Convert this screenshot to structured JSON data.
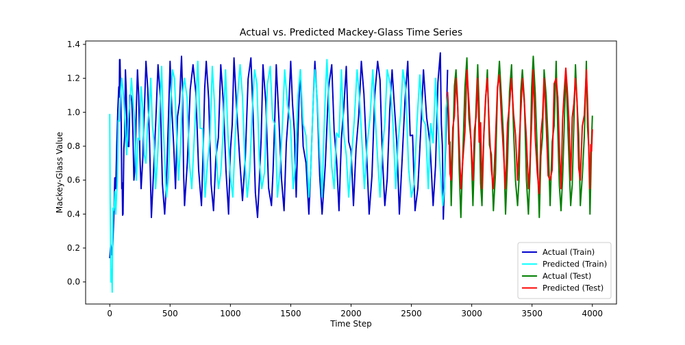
{
  "chart_data": {
    "type": "line",
    "title": "Actual vs. Predicted Mackey-Glass Time Series",
    "xlabel": "Time Step",
    "ylabel": "Mackey-Glass Value",
    "xlim": [
      -200,
      4200
    ],
    "ylim": [
      -0.13,
      1.42
    ],
    "x_ticks": [
      0,
      500,
      1000,
      1500,
      2000,
      2500,
      3000,
      3500,
      4000
    ],
    "y_ticks": [
      0.0,
      0.2,
      0.4,
      0.6,
      0.8,
      1.0,
      1.2,
      1.4
    ],
    "x_tick_labels": [
      "0",
      "500",
      "1000",
      "1500",
      "2000",
      "2500",
      "3000",
      "3500",
      "4000"
    ],
    "y_tick_labels": [
      "0.0",
      "0.2",
      "0.4",
      "0.6",
      "0.8",
      "1.0",
      "1.2",
      "1.4"
    ],
    "grid": false,
    "legend_position": "lower-right",
    "series": [
      {
        "name": "Actual (Train)",
        "color": "#0000cd",
        "x_start": 0,
        "x_end": 2800,
        "approx_range": [
          0.14,
          1.33
        ],
        "points": [
          [
            0,
            0.14
          ],
          [
            25,
            0.22
          ],
          [
            50,
            0.55
          ],
          [
            75,
            1.15
          ],
          [
            85,
            1.31
          ],
          [
            100,
            0.55
          ],
          [
            110,
            0.4
          ],
          [
            130,
            1.25
          ],
          [
            150,
            0.8
          ],
          [
            175,
            1.1
          ],
          [
            200,
            0.6
          ],
          [
            230,
            1.25
          ],
          [
            260,
            0.55
          ],
          [
            300,
            1.3
          ],
          [
            345,
            0.38
          ],
          [
            400,
            1.28
          ],
          [
            455,
            0.4
          ],
          [
            500,
            1.3
          ],
          [
            545,
            0.55
          ],
          [
            595,
            1.33
          ],
          [
            620,
            0.45
          ],
          [
            690,
            1.28
          ],
          [
            760,
            0.45
          ],
          [
            800,
            1.3
          ],
          [
            860,
            0.42
          ],
          [
            920,
            1.28
          ],
          [
            985,
            0.4
          ],
          [
            1030,
            1.32
          ],
          [
            1100,
            0.48
          ],
          [
            1170,
            1.32
          ],
          [
            1225,
            0.38
          ],
          [
            1270,
            1.28
          ],
          [
            1340,
            0.45
          ],
          [
            1380,
            1.28
          ],
          [
            1445,
            0.42
          ],
          [
            1500,
            1.3
          ],
          [
            1545,
            0.5
          ],
          [
            1580,
            1.25
          ],
          [
            1650,
            0.4
          ],
          [
            1700,
            1.3
          ],
          [
            1760,
            0.4
          ],
          [
            1840,
            1.28
          ],
          [
            1900,
            0.42
          ],
          [
            1960,
            1.27
          ],
          [
            2020,
            0.45
          ],
          [
            2085,
            1.3
          ],
          [
            2150,
            0.4
          ],
          [
            2220,
            1.3
          ],
          [
            2280,
            0.45
          ],
          [
            2340,
            1.25
          ],
          [
            2400,
            0.4
          ],
          [
            2470,
            1.3
          ],
          [
            2530,
            0.42
          ],
          [
            2600,
            1.25
          ],
          [
            2680,
            0.45
          ],
          [
            2740,
            1.35
          ],
          [
            2765,
            0.37
          ],
          [
            2800,
            1.25
          ]
        ]
      },
      {
        "name": "Predicted (Train)",
        "color": "#00ffff",
        "x_start": 0,
        "x_end": 2800,
        "approx_range": [
          -0.06,
          1.31
        ],
        "points": [
          [
            0,
            0.99
          ],
          [
            10,
            0.0
          ],
          [
            20,
            -0.06
          ],
          [
            30,
            0.42
          ],
          [
            50,
            0.4
          ],
          [
            70,
            0.95
          ],
          [
            100,
            1.2
          ],
          [
            140,
            0.75
          ],
          [
            180,
            1.2
          ],
          [
            220,
            0.6
          ],
          [
            260,
            1.15
          ],
          [
            300,
            0.7
          ],
          [
            340,
            1.2
          ],
          [
            380,
            0.55
          ],
          [
            430,
            1.27
          ],
          [
            470,
            0.5
          ],
          [
            520,
            1.25
          ],
          [
            570,
            0.6
          ],
          [
            620,
            1.2
          ],
          [
            680,
            0.55
          ],
          [
            730,
            1.3
          ],
          [
            790,
            0.5
          ],
          [
            850,
            1.27
          ],
          [
            900,
            0.55
          ],
          [
            960,
            1.25
          ],
          [
            1020,
            0.5
          ],
          [
            1080,
            1.28
          ],
          [
            1140,
            0.5
          ],
          [
            1200,
            1.25
          ],
          [
            1260,
            0.55
          ],
          [
            1330,
            1.27
          ],
          [
            1390,
            0.5
          ],
          [
            1450,
            1.25
          ],
          [
            1520,
            0.55
          ],
          [
            1580,
            1.25
          ],
          [
            1650,
            0.5
          ],
          [
            1700,
            1.25
          ],
          [
            1760,
            0.5
          ],
          [
            1800,
            1.31
          ],
          [
            1860,
            0.55
          ],
          [
            1920,
            1.25
          ],
          [
            1980,
            0.5
          ],
          [
            2050,
            1.25
          ],
          [
            2110,
            0.55
          ],
          [
            2180,
            1.25
          ],
          [
            2240,
            0.5
          ],
          [
            2300,
            1.25
          ],
          [
            2370,
            0.55
          ],
          [
            2430,
            1.25
          ],
          [
            2500,
            0.5
          ],
          [
            2570,
            1.22
          ],
          [
            2640,
            0.55
          ],
          [
            2700,
            1.2
          ],
          [
            2760,
            0.45
          ],
          [
            2800,
            1.1
          ]
        ]
      },
      {
        "name": "Actual (Test)",
        "color": "#008000",
        "x_start": 2800,
        "x_end": 4000,
        "approx_range": [
          0.38,
          1.33
        ],
        "points": [
          [
            2800,
            1.1
          ],
          [
            2830,
            0.45
          ],
          [
            2870,
            1.25
          ],
          [
            2910,
            0.38
          ],
          [
            2960,
            1.32
          ],
          [
            3010,
            0.45
          ],
          [
            3050,
            1.28
          ],
          [
            3085,
            0.45
          ],
          [
            3130,
            1.25
          ],
          [
            3180,
            0.42
          ],
          [
            3230,
            1.3
          ],
          [
            3280,
            0.4
          ],
          [
            3330,
            1.28
          ],
          [
            3380,
            0.45
          ],
          [
            3420,
            1.25
          ],
          [
            3470,
            0.4
          ],
          [
            3510,
            1.33
          ],
          [
            3560,
            0.38
          ],
          [
            3600,
            1.25
          ],
          [
            3650,
            0.45
          ],
          [
            3700,
            1.3
          ],
          [
            3740,
            0.42
          ],
          [
            3780,
            1.25
          ],
          [
            3820,
            0.45
          ],
          [
            3860,
            1.28
          ],
          [
            3900,
            0.45
          ],
          [
            3950,
            1.3
          ],
          [
            3980,
            0.4
          ],
          [
            4000,
            0.98
          ]
        ]
      },
      {
        "name": "Predicted (Test)",
        "color": "#ff0000",
        "x_start": 2800,
        "x_end": 4000,
        "approx_range": [
          0.5,
          1.26
        ],
        "points": [
          [
            2800,
            1.12
          ],
          [
            2830,
            0.6
          ],
          [
            2870,
            1.2
          ],
          [
            2910,
            0.55
          ],
          [
            2960,
            1.25
          ],
          [
            3010,
            0.6
          ],
          [
            3050,
            1.2
          ],
          [
            3085,
            0.55
          ],
          [
            3130,
            1.2
          ],
          [
            3180,
            0.55
          ],
          [
            3230,
            1.22
          ],
          [
            3280,
            0.55
          ],
          [
            3330,
            1.2
          ],
          [
            3380,
            0.6
          ],
          [
            3420,
            1.2
          ],
          [
            3470,
            0.55
          ],
          [
            3510,
            1.25
          ],
          [
            3560,
            0.52
          ],
          [
            3600,
            1.2
          ],
          [
            3650,
            0.6
          ],
          [
            3700,
            1.2
          ],
          [
            3740,
            0.55
          ],
          [
            3780,
            1.26
          ],
          [
            3820,
            0.6
          ],
          [
            3860,
            1.2
          ],
          [
            3900,
            0.6
          ],
          [
            3950,
            1.25
          ],
          [
            3980,
            0.55
          ],
          [
            4000,
            0.9
          ]
        ]
      }
    ]
  }
}
